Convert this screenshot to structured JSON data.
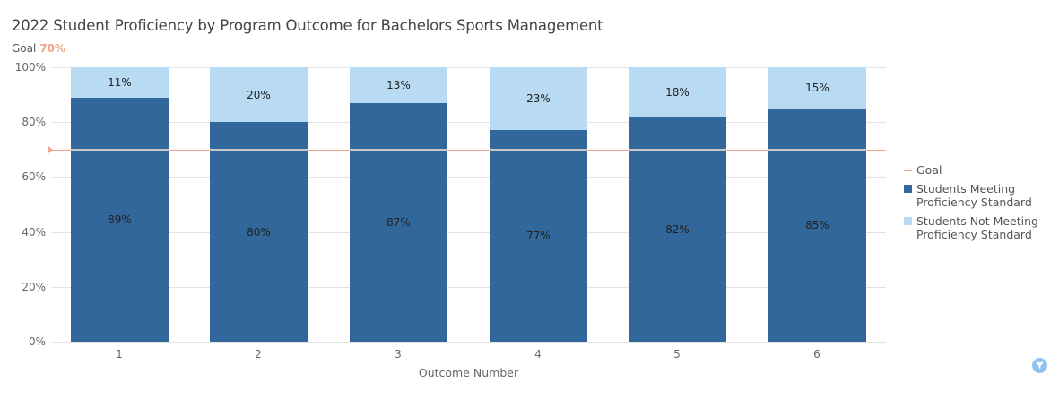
{
  "header": {
    "title": "2022 Student Proficiency by Program Outcome for Bachelors Sports Management",
    "goal_label": "Goal",
    "goal_value": "70%"
  },
  "colors": {
    "meeting": "#31679b",
    "not_meeting": "#b8daf3",
    "goal": "#f0a58a"
  },
  "legend": {
    "goal": "Goal",
    "meeting_1": "Students Meeting",
    "meeting_2": "Proficiency Standard",
    "not_1": "Students Not Meeting",
    "not_2": "Proficiency Standard"
  },
  "yticks": [
    "100%",
    "80%",
    "60%",
    "40%",
    "20%",
    "0%"
  ],
  "xlabel": "Outcome Number",
  "filter_icon": "filter-icon",
  "chart_data": {
    "type": "bar",
    "stacked": true,
    "title": "2022 Student Proficiency by Program Outcome for Bachelors Sports Management",
    "xlabel": "Outcome Number",
    "ylabel": "",
    "ylim": [
      0,
      100
    ],
    "categories": [
      "1",
      "2",
      "3",
      "4",
      "5",
      "6"
    ],
    "series": [
      {
        "name": "Students Meeting Proficiency Standard",
        "values": [
          89,
          80,
          87,
          77,
          82,
          85
        ],
        "labels": [
          "89%",
          "80%",
          "87%",
          "77%",
          "82%",
          "85%"
        ]
      },
      {
        "name": "Students Not Meeting Proficiency Standard",
        "values": [
          11,
          20,
          13,
          23,
          18,
          15
        ],
        "labels": [
          "11%",
          "20%",
          "13%",
          "23%",
          "18%",
          "15%"
        ]
      }
    ],
    "goal_line": {
      "name": "Goal",
      "value": 70
    },
    "grid": true,
    "legend_position": "right"
  }
}
